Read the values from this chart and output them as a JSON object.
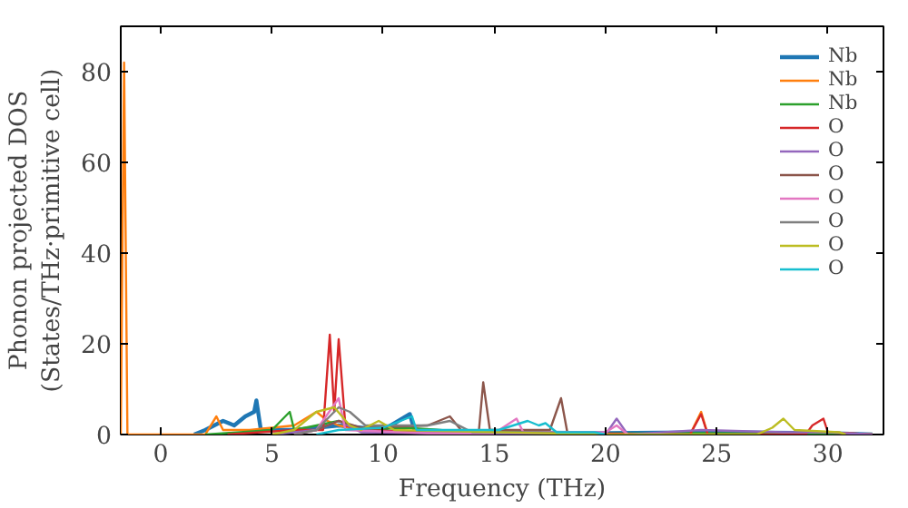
{
  "chart_data": {
    "type": "line",
    "xlabel": "Frequency (THz)",
    "ylabel": "Phonon projected DOS\n(States/THz·primitive cell)",
    "xlim": [
      -1.8,
      32.5
    ],
    "ylim": [
      0,
      90
    ],
    "xticks": [
      0,
      5,
      10,
      15,
      20,
      25,
      30
    ],
    "yticks": [
      0,
      20,
      40,
      60,
      80
    ],
    "grid": false,
    "legend": "top right",
    "marker": "none",
    "line_style": "solid",
    "series": [
      {
        "name": "Nb",
        "color": "#1f77b4",
        "x": [
          1.5,
          2,
          2.8,
          3.3,
          3.8,
          4.2,
          4.3,
          4.5,
          6,
          8,
          10,
          11.2,
          11.4,
          14,
          20,
          24.3,
          30,
          32
        ],
        "values": [
          0,
          1,
          3,
          2,
          4,
          5,
          7.5,
          1,
          1,
          2,
          1,
          4.5,
          1,
          0.5,
          0.3,
          0.5,
          0.3,
          0
        ]
      },
      {
        "name": "Nb",
        "color": "#ff7f0e",
        "x": [
          -1.8,
          -1.65,
          -1.5,
          2,
          2.5,
          2.8,
          4,
          6,
          7,
          7.5,
          8,
          9,
          10,
          12,
          23.8,
          24.3,
          24.6,
          30,
          32
        ],
        "values": [
          0,
          82,
          0,
          0,
          4,
          1,
          1,
          2,
          5,
          3,
          2,
          1,
          0.5,
          0.5,
          0,
          5,
          0,
          0.5,
          0
        ]
      },
      {
        "name": "Nb",
        "color": "#2ca02c",
        "x": [
          2,
          5,
          5.8,
          6,
          8,
          9,
          11,
          14,
          20,
          24.3,
          32
        ],
        "values": [
          0,
          1,
          5,
          1,
          3,
          1,
          1.5,
          0.5,
          0.2,
          0.3,
          0
        ]
      },
      {
        "name": "O",
        "color": "#d62728",
        "x": [
          3,
          6,
          7.3,
          7.6,
          7.8,
          8,
          8.3,
          9,
          12,
          20,
          23.8,
          24.3,
          24.6,
          29,
          29.3,
          29.8,
          30,
          32
        ],
        "values": [
          0,
          1,
          1,
          22,
          5,
          21,
          2,
          1,
          0.5,
          0.2,
          0,
          4.5,
          0,
          0,
          2,
          3.5,
          0.5,
          0
        ]
      },
      {
        "name": "O",
        "color": "#9467bd",
        "x": [
          5,
          7,
          8,
          9,
          12,
          20,
          20.5,
          21,
          24.3,
          28,
          30,
          32
        ],
        "values": [
          0,
          1,
          3,
          0.5,
          0.3,
          0,
          3.5,
          0,
          1,
          0.5,
          0.5,
          0
        ]
      },
      {
        "name": "O",
        "color": "#8c564b",
        "x": [
          6,
          7,
          8,
          9,
          12,
          13,
          13.5,
          14.3,
          14.5,
          14.8,
          17,
          17.5,
          18,
          18.3,
          20
        ],
        "values": [
          0,
          1,
          3,
          1.5,
          2,
          4,
          1,
          0.5,
          11.5,
          1,
          1,
          1,
          8,
          0,
          0
        ]
      },
      {
        "name": "O",
        "color": "#e377c2",
        "x": [
          6,
          7,
          8,
          8.3,
          12,
          15,
          16,
          16.3,
          20,
          20.5,
          21
        ],
        "values": [
          0,
          1,
          8,
          1,
          0.3,
          0.3,
          3.5,
          0.5,
          0.5,
          2,
          0
        ]
      },
      {
        "name": "O",
        "color": "#7f7f7f",
        "x": [
          6,
          7,
          8,
          8.5,
          9.2,
          12,
          13,
          14,
          17,
          20
        ],
        "values": [
          0,
          1,
          6,
          5,
          2,
          2,
          3,
          0.5,
          0.5,
          0
        ]
      },
      {
        "name": "O",
        "color": "#bcbd22",
        "x": [
          5,
          6,
          7,
          7.8,
          8.5,
          9,
          9.8,
          10.5,
          20,
          26.8,
          27.5,
          28,
          28.5,
          30.5,
          30.8
        ],
        "values": [
          0,
          1,
          5,
          6,
          2,
          1,
          3,
          1,
          0,
          0,
          1.5,
          3.5,
          1,
          0.5,
          0
        ]
      },
      {
        "name": "O",
        "color": "#17becf",
        "x": [
          7,
          8,
          10,
          11.3,
          11.5,
          14,
          15.2,
          16.5,
          17,
          17.3,
          17.8,
          19.5,
          20
        ],
        "values": [
          0,
          1,
          1.5,
          4,
          1,
          1,
          1,
          3,
          2,
          2.5,
          0.5,
          0.5,
          0
        ]
      }
    ]
  }
}
